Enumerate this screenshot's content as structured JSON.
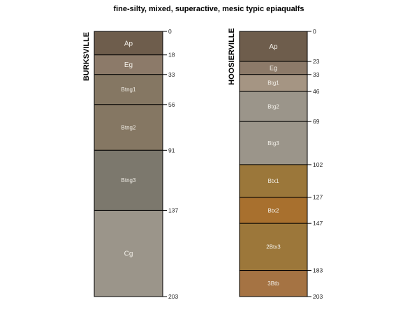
{
  "chart_data": {
    "type": "soil-profile",
    "title": "fine-silty, mixed, superactive, mesic typic epiaqualfs",
    "depth_units": "cm",
    "depth_range": [
      0,
      203
    ],
    "profiles": [
      {
        "name": "BURKSVILLE",
        "horizons": [
          {
            "name": "Ap",
            "top": 0,
            "bottom": 18,
            "color": "#6e5d4c"
          },
          {
            "name": "Eg",
            "top": 18,
            "bottom": 33,
            "color": "#8c7a69"
          },
          {
            "name": "Btng1",
            "top": 33,
            "bottom": 56,
            "color": "#857763"
          },
          {
            "name": "Btng2",
            "top": 56,
            "bottom": 91,
            "color": "#857763"
          },
          {
            "name": "Btng3",
            "top": 91,
            "bottom": 137,
            "color": "#7c786d"
          },
          {
            "name": "Cg",
            "top": 137,
            "bottom": 203,
            "color": "#9b958a"
          }
        ],
        "depth_ticks": [
          0,
          18,
          33,
          56,
          91,
          137,
          203
        ]
      },
      {
        "name": "HOOSIERVILLE",
        "horizons": [
          {
            "name": "Ap",
            "top": 0,
            "bottom": 23,
            "color": "#6e5d4c"
          },
          {
            "name": "Eg",
            "top": 23,
            "bottom": 33,
            "color": "#8c7a69"
          },
          {
            "name": "Btg1",
            "top": 33,
            "bottom": 46,
            "color": "#a59583"
          },
          {
            "name": "Btg2",
            "top": 46,
            "bottom": 69,
            "color": "#9b958a"
          },
          {
            "name": "Btg3",
            "top": 69,
            "bottom": 102,
            "color": "#9b958a"
          },
          {
            "name": "Btx1",
            "top": 102,
            "bottom": 127,
            "color": "#9b773a"
          },
          {
            "name": "Btx2",
            "top": 127,
            "bottom": 147,
            "color": "#a8702e"
          },
          {
            "name": "2Btx3",
            "top": 147,
            "bottom": 183,
            "color": "#9c773a"
          },
          {
            "name": "3Btb",
            "top": 183,
            "bottom": 203,
            "color": "#a57343"
          }
        ],
        "depth_ticks": [
          0,
          23,
          33,
          46,
          69,
          102,
          127,
          147,
          183,
          203
        ]
      }
    ]
  }
}
